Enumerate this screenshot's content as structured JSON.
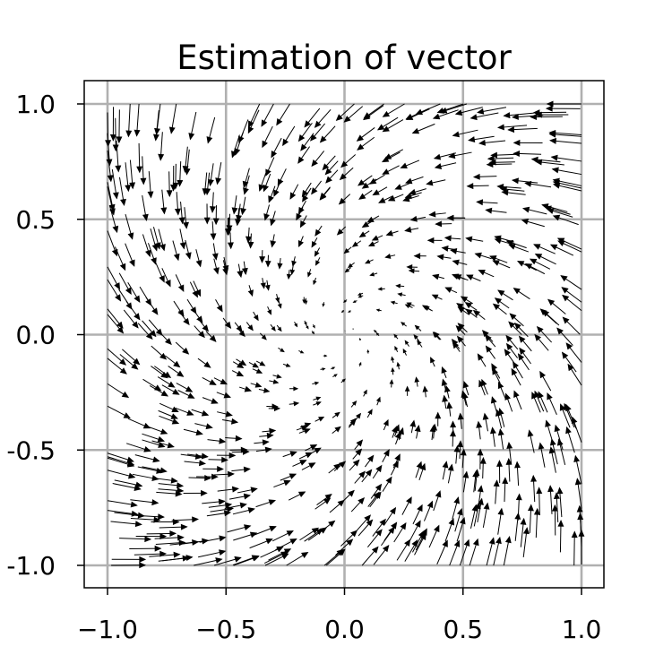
{
  "chart_data": {
    "type": "quiver",
    "title": "Estimation of vector",
    "xlabel": "",
    "ylabel": "",
    "xlim": [
      -1.1,
      1.1
    ],
    "ylim": [
      -1.1,
      1.1
    ],
    "x_ticks": [
      -1.0,
      -0.5,
      0.0,
      0.5,
      1.0
    ],
    "y_ticks": [
      -1.0,
      -0.5,
      0.0,
      0.5,
      1.0
    ],
    "x_tick_labels": [
      "−1.0",
      "−0.5",
      "0.0",
      "0.5",
      "1.0"
    ],
    "y_tick_labels": [
      "1.0",
      "0.5",
      "0.0",
      "-0.5",
      "-1.0"
    ],
    "grid": true,
    "field": {
      "description_of_field": "vector field (u, v) = (-x - y, x - y) sampled on a jittered grid; arrows point toward the origin with counter-clockwise rotation",
      "x": [
        -1.0,
        -0.9,
        -0.8,
        -0.7,
        -0.6,
        -0.5,
        -0.4,
        -0.3,
        -0.2,
        -0.1,
        0.0,
        0.1,
        0.2,
        0.3,
        0.4,
        0.5,
        0.6,
        0.7,
        0.8,
        0.9,
        1.0
      ],
      "y": [
        -1.0,
        -0.9,
        -0.8,
        -0.7,
        -0.6,
        -0.5,
        -0.4,
        -0.3,
        -0.2,
        -0.1,
        0.0,
        0.1,
        0.2,
        0.3,
        0.4,
        0.5,
        0.6,
        0.7,
        0.8,
        0.9,
        1.0
      ],
      "u_formula": "-x - y",
      "v_formula": "x - y"
    },
    "color": "#000000",
    "grid_color": "#b0b0b0"
  }
}
